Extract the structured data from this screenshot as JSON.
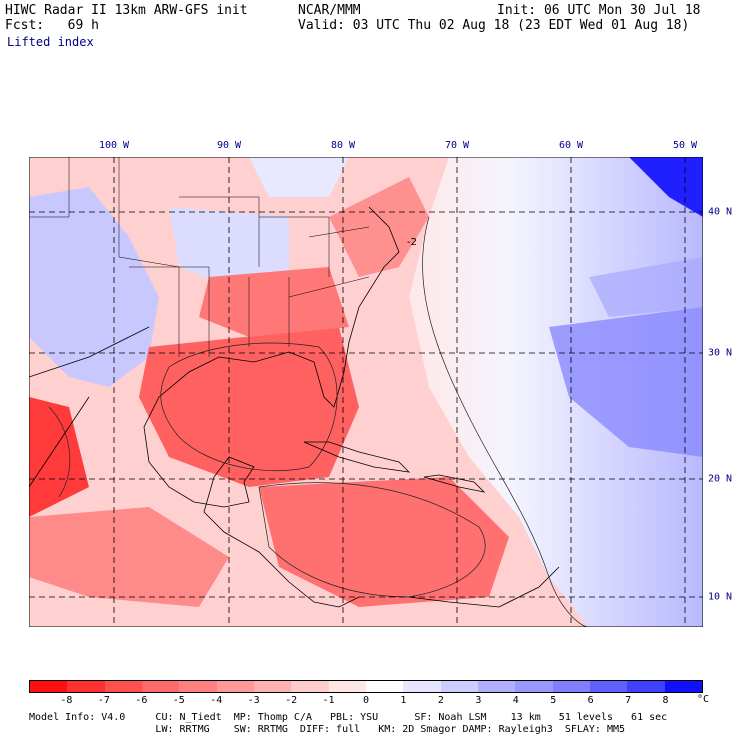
{
  "header": {
    "line1_left": "HIWC Radar II 13km ARW-GFS init",
    "line1_center": "NCAR/MMM",
    "line1_right": "Init: 06 UTC Mon 30 Jul 18",
    "line2_left": "Fcst:   69 h",
    "line2_right": "Valid: 03 UTC Thu 02 Aug 18 (23 EDT Wed 01 Aug 18)",
    "line3": "Lifted index"
  },
  "map": {
    "lon_labels": [
      "100 W",
      "90 W",
      "80 W",
      "70 W",
      "60 W",
      "50 W"
    ],
    "lat_labels": [
      "40 N",
      "30 N",
      "20 N",
      "10 N"
    ],
    "contour_label": "-2",
    "colors": {
      "negative": "#ff0000",
      "neutral": "#ffffff",
      "positive": "#0000ff"
    }
  },
  "colorbar": {
    "ticks": [
      "-8",
      "-7",
      "-6",
      "-5",
      "-4",
      "-3",
      "-2",
      "-1",
      "0",
      "1",
      "2",
      "3",
      "4",
      "5",
      "6",
      "7",
      "8"
    ],
    "unit": "°C",
    "colors": [
      "#ff1010",
      "#ff3030",
      "#ff5050",
      "#ff6a6a",
      "#ff8080",
      "#ff9898",
      "#ffb0b0",
      "#ffcccc",
      "#ffe6e6",
      "#ffffff",
      "#e6e6ff",
      "#ccccff",
      "#b0b0ff",
      "#9898ff",
      "#8080ff",
      "#6060ff",
      "#4040ff",
      "#1010ff"
    ]
  },
  "footer": {
    "line1": "Model Info: V4.0     CU: N_Tiedt  MP: Thomp C/A   PBL: YSU      SF: Noah LSM    13 km   51 levels   61 sec",
    "line2": "                     LW: RRTMG    SW: RRTMG  DIFF: full   KM: 2D Smagor DAMP: Rayleigh3  SFLAY: MM5"
  }
}
